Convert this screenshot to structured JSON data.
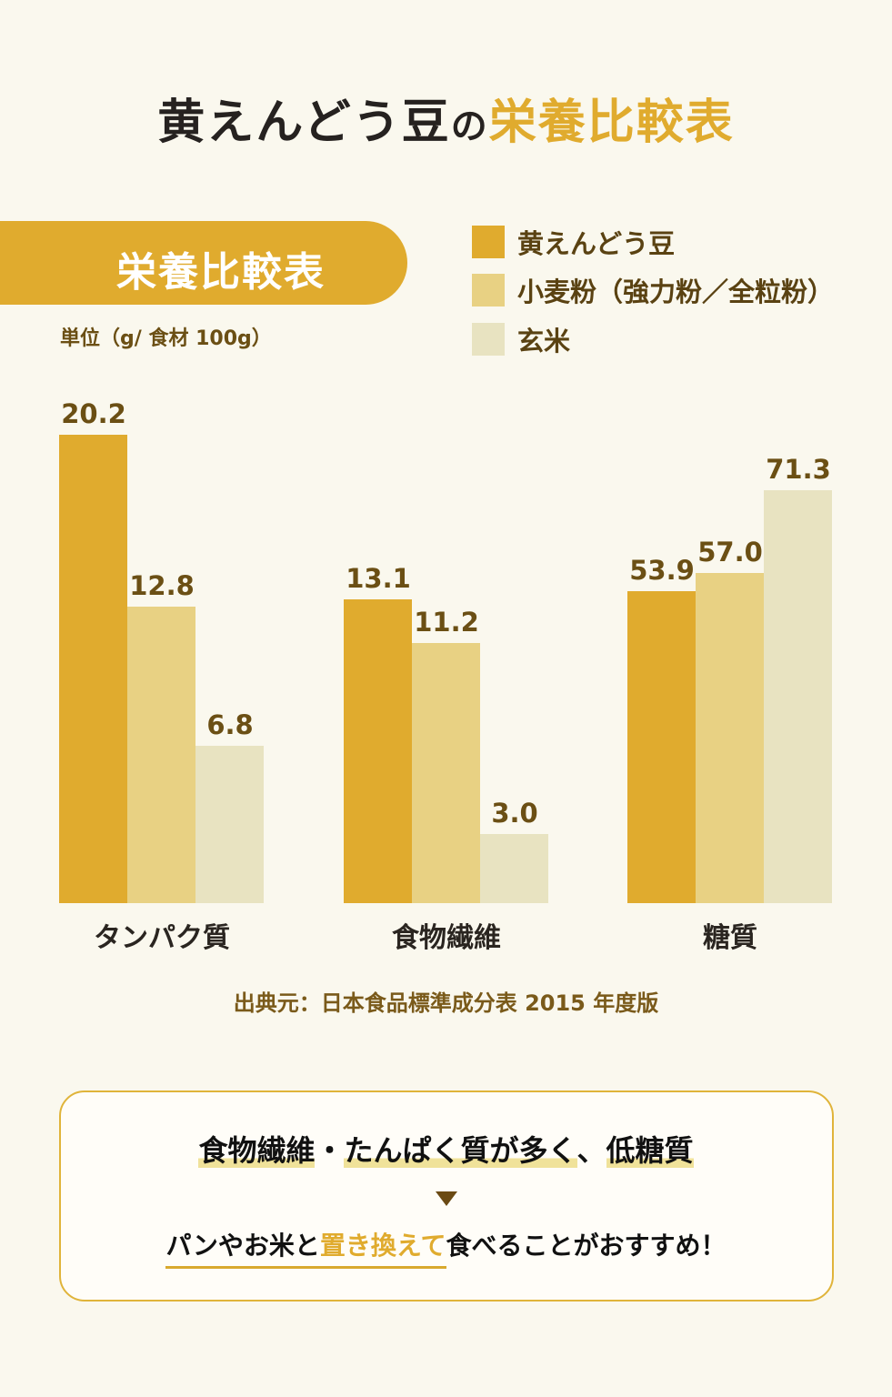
{
  "title": {
    "part1": "黄えんどう豆",
    "part2": "の",
    "part3": "栄養比較表"
  },
  "pill_label": "栄養比較表",
  "unit": "単位（g/ 食材 100g）",
  "source": "出典元：日本食品標準成分表 2015 年度版",
  "colors": {
    "yellow_pea": "#e0ab2e",
    "wheat": "#e8d183",
    "brown_rice": "#e8e3c1",
    "accent": "#e0ab2e"
  },
  "chart_data": {
    "type": "bar",
    "categories": [
      "タンパク質",
      "食物繊維",
      "糖質"
    ],
    "series": [
      {
        "name": "黄えんどう豆",
        "values": [
          20.2,
          13.1,
          53.9
        ]
      },
      {
        "name": "小麦粉（強力粉／全粒粉）",
        "values": [
          12.8,
          11.2,
          57.0
        ]
      },
      {
        "name": "玄米",
        "values": [
          6.8,
          3.0,
          71.3
        ]
      }
    ],
    "value_labels": [
      [
        "20.2",
        "13.1",
        "53.9"
      ],
      [
        "12.8",
        "11.2",
        "57.0"
      ],
      [
        "6.8",
        "3.0",
        "71.3"
      ]
    ],
    "ylabel": "単位（g/ 食材 100g）",
    "grid": false,
    "legend": "top-right"
  },
  "summary": {
    "line1_parts": [
      "食物繊維",
      "・",
      "たんぱく質が多く",
      "、",
      "低糖質"
    ],
    "line2_parts": [
      "パンやお米と",
      "置き換えて",
      "食べることがおすすめ！"
    ]
  }
}
